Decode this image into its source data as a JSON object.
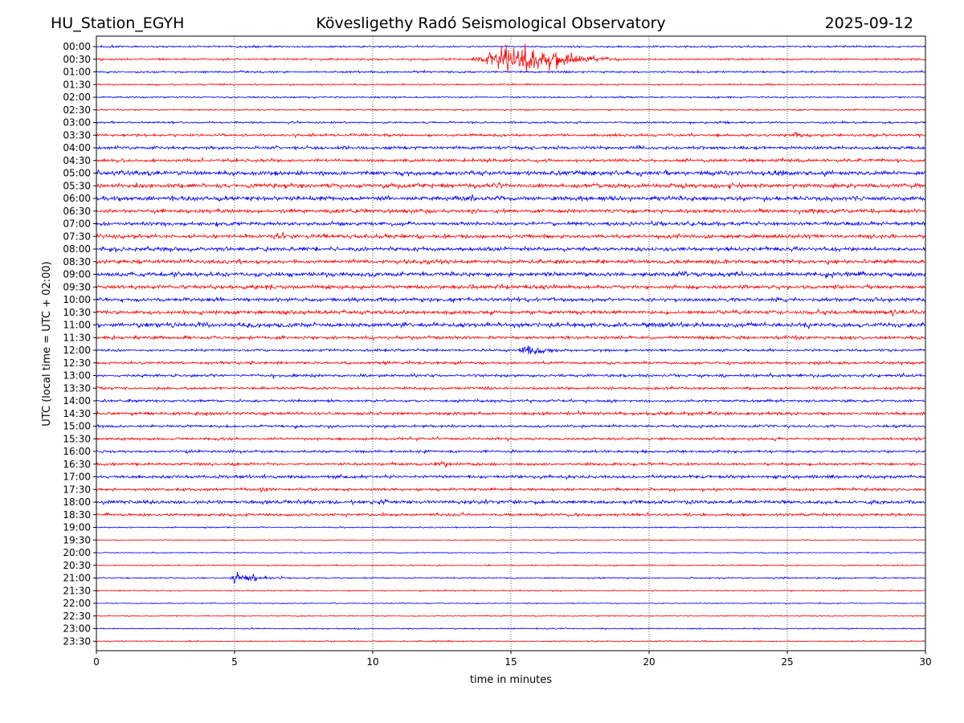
{
  "header": {
    "station": "HU_Station_EGYH",
    "observatory": "Kövesligethy Radó Seismological Observatory",
    "date": "2025-09-12"
  },
  "chart_data": {
    "type": "line",
    "title": "Kövesligethy Radó Seismological Observatory",
    "xlabel": "time in minutes",
    "ylabel": "UTC (local time = UTC + 02:00)",
    "xlim": [
      0,
      30
    ],
    "x_ticks": [
      "0",
      "5",
      "10",
      "15",
      "20",
      "25",
      "30"
    ],
    "grid": "vertical dotted lines at 5-minute intervals",
    "trace_colors": [
      "#0000ff",
      "#ff0000"
    ],
    "rows": [
      {
        "label": "00:00",
        "color": "#0000ff",
        "noise": 0.15,
        "events": []
      },
      {
        "label": "00:30",
        "color": "#ff0000",
        "noise": 0.15,
        "events": [
          {
            "start": 13.3,
            "peak": 15.0,
            "end": 20.5,
            "amp": 2.0,
            "shape": "tremor"
          }
        ]
      },
      {
        "label": "01:00",
        "color": "#0000ff",
        "noise": 0.15,
        "events": []
      },
      {
        "label": "01:30",
        "color": "#ff0000",
        "noise": 0.12,
        "events": []
      },
      {
        "label": "02:00",
        "color": "#0000ff",
        "noise": 0.12,
        "events": []
      },
      {
        "label": "02:30",
        "color": "#ff0000",
        "noise": 0.12,
        "events": []
      },
      {
        "label": "03:00",
        "color": "#0000ff",
        "noise": 0.15,
        "events": []
      },
      {
        "label": "03:30",
        "color": "#ff0000",
        "noise": 0.2,
        "events": [
          {
            "start": 25.0,
            "peak": 25.3,
            "end": 26.5,
            "amp": 0.3,
            "shape": "tremor"
          }
        ]
      },
      {
        "label": "04:00",
        "color": "#0000ff",
        "noise": 0.25,
        "events": []
      },
      {
        "label": "04:30",
        "color": "#ff0000",
        "noise": 0.25,
        "events": []
      },
      {
        "label": "05:00",
        "color": "#0000ff",
        "noise": 0.35,
        "events": []
      },
      {
        "label": "05:30",
        "color": "#ff0000",
        "noise": 0.35,
        "events": []
      },
      {
        "label": "06:00",
        "color": "#0000ff",
        "noise": 0.35,
        "events": []
      },
      {
        "label": "06:30",
        "color": "#ff0000",
        "noise": 0.3,
        "events": []
      },
      {
        "label": "07:00",
        "color": "#0000ff",
        "noise": 0.3,
        "events": []
      },
      {
        "label": "07:30",
        "color": "#ff0000",
        "noise": 0.3,
        "events": [
          {
            "start": 6.2,
            "peak": 6.6,
            "end": 7.2,
            "amp": 0.3,
            "shape": "tremor"
          }
        ]
      },
      {
        "label": "08:00",
        "color": "#0000ff",
        "noise": 0.3,
        "events": []
      },
      {
        "label": "08:30",
        "color": "#ff0000",
        "noise": 0.3,
        "events": []
      },
      {
        "label": "09:00",
        "color": "#0000ff",
        "noise": 0.35,
        "events": []
      },
      {
        "label": "09:30",
        "color": "#ff0000",
        "noise": 0.3,
        "events": []
      },
      {
        "label": "10:00",
        "color": "#0000ff",
        "noise": 0.3,
        "events": []
      },
      {
        "label": "10:30",
        "color": "#ff0000",
        "noise": 0.3,
        "events": [
          {
            "start": 28.3,
            "peak": 28.9,
            "end": 29.6,
            "amp": 0.45,
            "shape": "tremor"
          }
        ]
      },
      {
        "label": "11:00",
        "color": "#0000ff",
        "noise": 0.35,
        "events": []
      },
      {
        "label": "11:30",
        "color": "#ff0000",
        "noise": 0.25,
        "events": []
      },
      {
        "label": "12:00",
        "color": "#0000ff",
        "noise": 0.2,
        "events": [
          {
            "start": 15.0,
            "peak": 15.7,
            "end": 17.5,
            "amp": 0.7,
            "shape": "tremor"
          }
        ]
      },
      {
        "label": "12:30",
        "color": "#ff0000",
        "noise": 0.22,
        "events": []
      },
      {
        "label": "13:00",
        "color": "#0000ff",
        "noise": 0.22,
        "events": []
      },
      {
        "label": "13:30",
        "color": "#ff0000",
        "noise": 0.2,
        "events": []
      },
      {
        "label": "14:00",
        "color": "#0000ff",
        "noise": 0.2,
        "events": []
      },
      {
        "label": "14:30",
        "color": "#ff0000",
        "noise": 0.25,
        "events": []
      },
      {
        "label": "15:00",
        "color": "#0000ff",
        "noise": 0.2,
        "events": []
      },
      {
        "label": "15:30",
        "color": "#ff0000",
        "noise": 0.2,
        "events": []
      },
      {
        "label": "16:00",
        "color": "#0000ff",
        "noise": 0.2,
        "events": []
      },
      {
        "label": "16:30",
        "color": "#ff0000",
        "noise": 0.22,
        "events": [
          {
            "start": 12.2,
            "peak": 12.6,
            "end": 13.8,
            "amp": 0.3,
            "shape": "tremor"
          }
        ]
      },
      {
        "label": "17:00",
        "color": "#0000ff",
        "noise": 0.25,
        "events": []
      },
      {
        "label": "17:30",
        "color": "#ff0000",
        "noise": 0.22,
        "events": [
          {
            "start": 5.8,
            "peak": 6.1,
            "end": 6.6,
            "amp": 0.4,
            "shape": "tremor"
          }
        ]
      },
      {
        "label": "18:00",
        "color": "#0000ff",
        "noise": 0.3,
        "events": []
      },
      {
        "label": "18:30",
        "color": "#ff0000",
        "noise": 0.22,
        "events": []
      },
      {
        "label": "19:00",
        "color": "#0000ff",
        "noise": 0.1,
        "events": []
      },
      {
        "label": "19:30",
        "color": "#ff0000",
        "noise": 0.08,
        "events": []
      },
      {
        "label": "20:00",
        "color": "#0000ff",
        "noise": 0.08,
        "events": []
      },
      {
        "label": "20:30",
        "color": "#ff0000",
        "noise": 0.1,
        "events": []
      },
      {
        "label": "21:00",
        "color": "#0000ff",
        "noise": 0.12,
        "events": [
          {
            "start": 4.8,
            "peak": 5.0,
            "end": 7.5,
            "amp": 0.9,
            "shape": "spike"
          }
        ]
      },
      {
        "label": "21:30",
        "color": "#ff0000",
        "noise": 0.1,
        "events": []
      },
      {
        "label": "22:00",
        "color": "#0000ff",
        "noise": 0.08,
        "events": []
      },
      {
        "label": "22:30",
        "color": "#ff0000",
        "noise": 0.08,
        "events": []
      },
      {
        "label": "23:00",
        "color": "#0000ff",
        "noise": 0.1,
        "events": []
      },
      {
        "label": "23:30",
        "color": "#ff0000",
        "noise": 0.1,
        "events": []
      }
    ]
  }
}
